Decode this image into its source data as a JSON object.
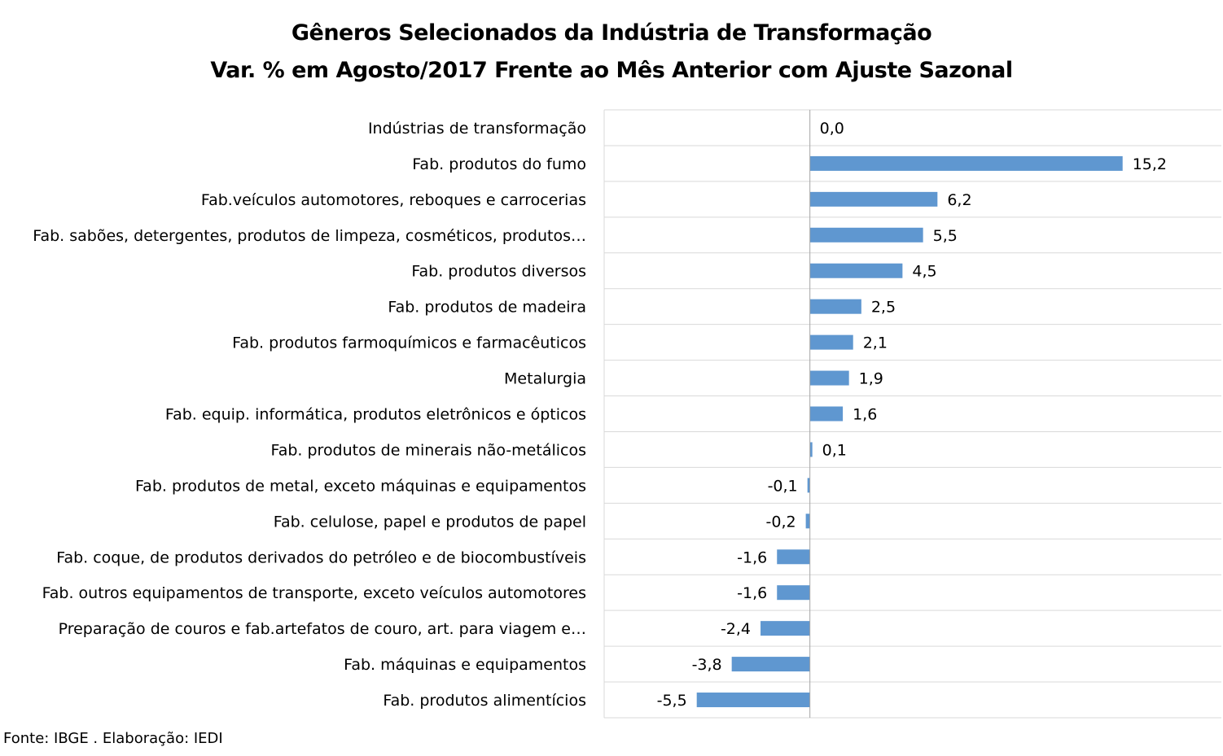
{
  "chart_data": {
    "type": "bar",
    "orientation": "horizontal",
    "title": "Gêneros Selecionados da Indústria de Transformação",
    "subtitle": "Var. % em Agosto/2017 Frente ao Mês Anterior com Ajuste Sazonal",
    "categories": [
      "Indústrias de transformação",
      "Fab. produtos do fumo",
      "Fab.veículos automotores, reboques e carrocerias",
      "Fab. sabões, detergentes, produtos de limpeza, cosméticos, produtos…",
      "Fab. produtos diversos",
      "Fab. produtos de madeira",
      "Fab. produtos farmoquímicos e farmacêuticos",
      "Metalurgia",
      "Fab. equip. informática, produtos eletrônicos e ópticos",
      "Fab. produtos de minerais não-metálicos",
      "Fab. produtos de metal, exceto máquinas e equipamentos",
      "Fab. celulose, papel e produtos de papel",
      "Fab. coque, de produtos derivados do petróleo e de biocombustíveis",
      "Fab. outros equipamentos de transporte, exceto veículos automotores",
      "Preparação de couros e fab.artefatos de couro, art. para viagem e…",
      "Fab. máquinas e equipamentos",
      "Fab. produtos alimentícios"
    ],
    "values": [
      0.0,
      15.2,
      6.2,
      5.5,
      4.5,
      2.5,
      2.1,
      1.9,
      1.6,
      0.1,
      -0.1,
      -0.2,
      -1.6,
      -1.6,
      -2.4,
      -3.8,
      -5.5
    ],
    "value_labels": [
      "0,0",
      "15,2",
      "6,2",
      "5,5",
      "4,5",
      "2,5",
      "2,1",
      "1,9",
      "1,6",
      "0,1",
      "-0,1",
      "-0,2",
      "-1,6",
      "-1,6",
      "-2,4",
      "-3,8",
      "-5,5"
    ],
    "xlim": [
      -10,
      20
    ],
    "grid": true,
    "bar_color": "#5f97d0"
  },
  "source": "Fonte: IBGE . Elaboração: IEDI"
}
